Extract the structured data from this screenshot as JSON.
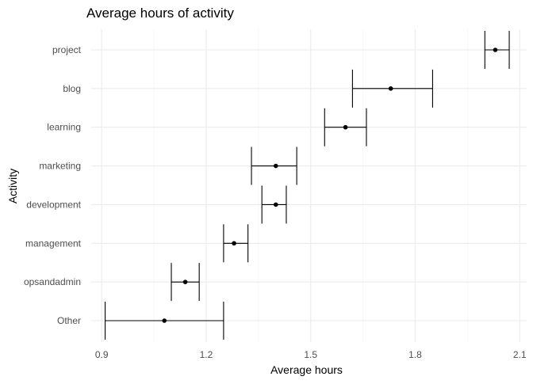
{
  "chart_data": {
    "type": "scatter",
    "title": "Average hours of activity",
    "xlabel": "Average hours",
    "ylabel": "Activity",
    "xlim": [
      0.87,
      2.12
    ],
    "xticks": [
      0.9,
      1.2,
      1.5,
      1.8,
      2.1
    ],
    "xtick_labels": [
      "0.9",
      "1.2",
      "1.5",
      "1.8",
      "2.1"
    ],
    "grid": true,
    "categories": [
      "project",
      "blog",
      "learning",
      "marketing",
      "development",
      "management",
      "opsandadmin",
      "Other"
    ],
    "points": [
      {
        "category": "project",
        "mean": 2.03,
        "lower": 2.0,
        "upper": 2.07
      },
      {
        "category": "blog",
        "mean": 1.73,
        "lower": 1.62,
        "upper": 1.85
      },
      {
        "category": "learning",
        "mean": 1.6,
        "lower": 1.54,
        "upper": 1.66
      },
      {
        "category": "marketing",
        "mean": 1.4,
        "lower": 1.33,
        "upper": 1.46
      },
      {
        "category": "development",
        "mean": 1.4,
        "lower": 1.36,
        "upper": 1.43
      },
      {
        "category": "management",
        "mean": 1.28,
        "lower": 1.25,
        "upper": 1.32
      },
      {
        "category": "opsandadmin",
        "mean": 1.14,
        "lower": 1.1,
        "upper": 1.18
      },
      {
        "category": "Other",
        "mean": 1.08,
        "lower": 0.91,
        "upper": 1.25
      }
    ],
    "colors": {
      "point": "#000000",
      "errorbar": "#000000",
      "grid_major": "#ebebeb",
      "grid_minor": "#f3f3f3",
      "text": "#4d4d4d",
      "title": "#000000"
    }
  }
}
